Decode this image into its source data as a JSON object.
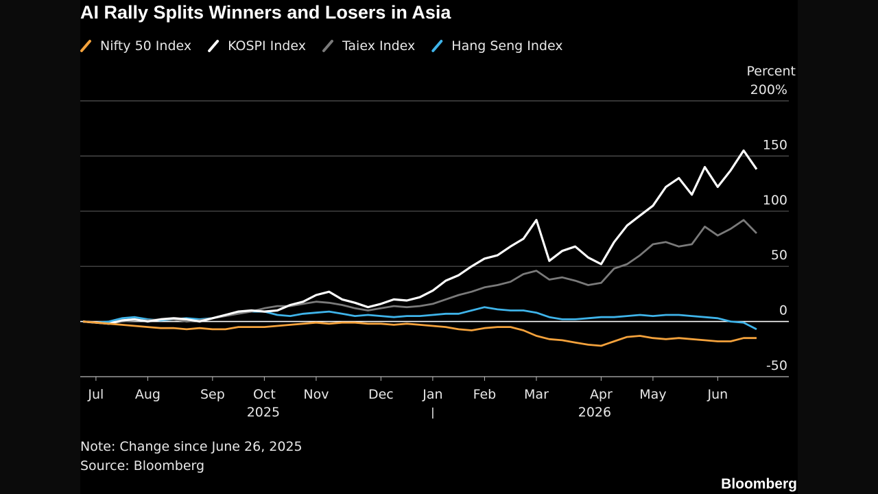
{
  "chart_data": {
    "type": "line",
    "title": "AI Rally Splits Winners and Losers in Asia",
    "y_axis_label": "Percent",
    "note": "Note: Change since June 26, 2025",
    "source": "Source: Bloomberg",
    "brand": "Bloomberg",
    "years": [
      "2025",
      "2026"
    ],
    "categories": [
      null,
      "Jul",
      null,
      null,
      null,
      "Aug",
      null,
      null,
      null,
      null,
      "Sep",
      null,
      null,
      null,
      "Oct",
      null,
      null,
      null,
      "Nov",
      null,
      null,
      null,
      null,
      "Dec",
      null,
      null,
      null,
      "Jan",
      null,
      null,
      null,
      "Feb",
      null,
      null,
      null,
      "Mar",
      null,
      null,
      null,
      null,
      "Apr",
      null,
      null,
      null,
      "May",
      null,
      null,
      null,
      null,
      "Jun",
      null,
      null,
      null
    ],
    "series": [
      {
        "name": "Nifty 50 Index",
        "color": "#f4a23c",
        "values": [
          0,
          -1,
          -2,
          -3,
          -4,
          -5,
          -6,
          -6,
          -7,
          -6,
          -7,
          -7,
          -5,
          -5,
          -5,
          -4,
          -3,
          -2,
          -1,
          -2,
          -1,
          -1,
          -2,
          -2,
          -3,
          -2,
          -3,
          -4,
          -5,
          -7,
          -8,
          -6,
          -5,
          -5,
          -8,
          -13,
          -16,
          -17,
          -19,
          -21,
          -22,
          -18,
          -14,
          -13,
          -15,
          -16,
          -15,
          -16,
          -17,
          -18,
          -18,
          -15,
          -15
        ]
      },
      {
        "name": "KOSPI Index",
        "color": "#ffffff",
        "values": [
          0,
          -1,
          -2,
          1,
          2,
          0,
          2,
          3,
          2,
          0,
          3,
          6,
          9,
          10,
          9,
          10,
          15,
          18,
          24,
          27,
          20,
          17,
          13,
          16,
          20,
          19,
          22,
          28,
          37,
          42,
          50,
          57,
          60,
          68,
          75,
          92,
          55,
          64,
          68,
          58,
          52,
          72,
          87,
          96,
          105,
          122,
          130,
          115,
          140,
          122,
          137,
          155,
          138
        ]
      },
      {
        "name": "Taiex Index",
        "color": "#7a7a7a",
        "values": [
          0,
          -1,
          -2,
          0,
          1,
          1,
          2,
          2,
          0,
          1,
          3,
          5,
          7,
          9,
          12,
          14,
          14,
          16,
          18,
          17,
          15,
          12,
          10,
          12,
          14,
          13,
          14,
          16,
          20,
          24,
          27,
          31,
          33,
          36,
          43,
          46,
          38,
          40,
          37,
          33,
          35,
          48,
          52,
          60,
          70,
          72,
          68,
          70,
          86,
          78,
          84,
          92,
          80
        ]
      },
      {
        "name": "Hang Seng Index",
        "color": "#3fb4ea",
        "values": [
          0,
          -1,
          0,
          3,
          4,
          2,
          1,
          2,
          3,
          2,
          3,
          6,
          8,
          9,
          9,
          6,
          5,
          7,
          8,
          9,
          7,
          5,
          6,
          5,
          4,
          5,
          5,
          6,
          7,
          7,
          10,
          13,
          11,
          10,
          10,
          8,
          4,
          2,
          2,
          3,
          4,
          4,
          5,
          6,
          5,
          6,
          6,
          5,
          4,
          3,
          0,
          -1,
          -7
        ]
      }
    ],
    "ylim": [
      -50,
      200
    ],
    "yticks": [
      -50,
      0,
      50,
      100,
      150,
      {
        "value": 200,
        "label": "200%"
      }
    ],
    "grid": true
  }
}
